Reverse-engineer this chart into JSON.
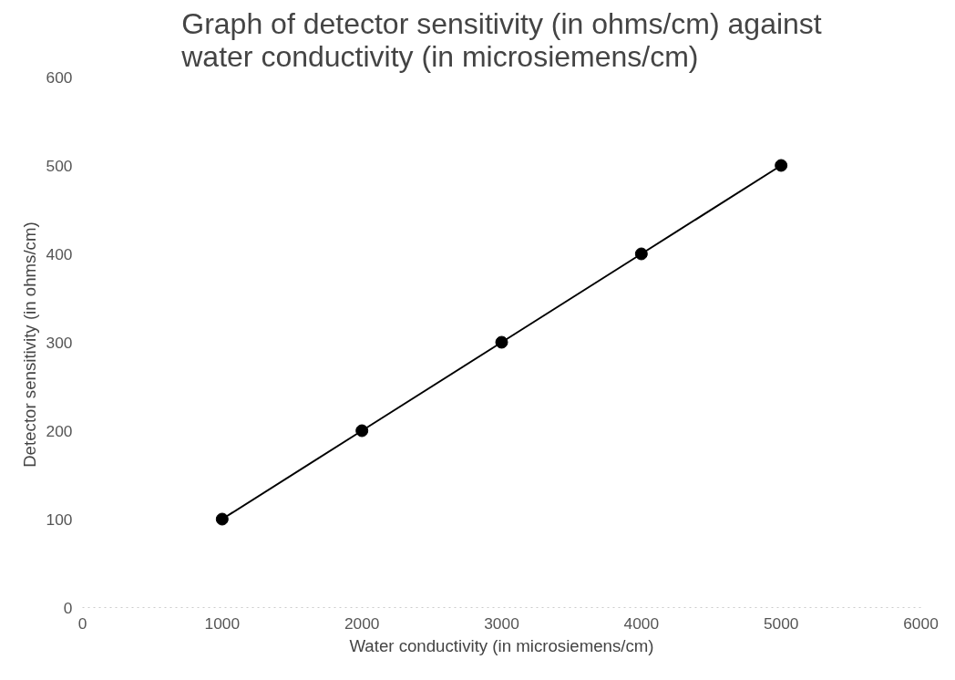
{
  "chart_data": {
    "type": "line",
    "title": "Graph of detector sensitivity (in ohms/cm) against water conductivity (in microsiemens/cm)",
    "xlabel": "Water conductivity (in microsiemens/cm)",
    "ylabel": "Detector sensitivity  (in ohms/cm)",
    "x": [
      1000,
      2000,
      3000,
      4000,
      5000
    ],
    "series": [
      {
        "color": "#000000",
        "values": [
          100,
          200,
          300,
          400,
          500
        ]
      }
    ],
    "xlim": [
      0,
      6000
    ],
    "ylim": [
      0,
      600
    ],
    "xticks": [
      0,
      1000,
      2000,
      3000,
      4000,
      5000,
      6000
    ],
    "yticks": [
      0,
      100,
      200,
      300,
      400,
      500,
      600
    ],
    "grid": false,
    "marker": "circle",
    "line_style": "solid"
  }
}
